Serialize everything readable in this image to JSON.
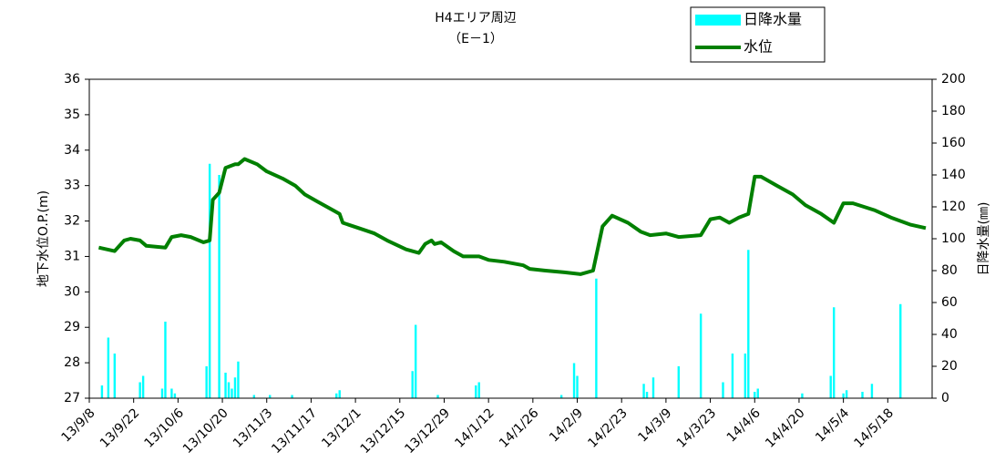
{
  "chart_data": {
    "type": "bar-line",
    "title": "H4エリア周辺",
    "subtitle": "（E－1）",
    "y_label": "地下水位O.P.(m)",
    "y2_label": "日降水量(㎜)",
    "xlim": [
      "2013-09-08",
      "2014-06-01"
    ],
    "xticks": [
      {
        "value": "2013-09-08",
        "label": "13/9/8"
      },
      {
        "value": "2013-09-22",
        "label": "13/9/22"
      },
      {
        "value": "2013-10-06",
        "label": "13/10/6"
      },
      {
        "value": "2013-10-20",
        "label": "13/10/20"
      },
      {
        "value": "2013-11-03",
        "label": "13/11/3"
      },
      {
        "value": "2013-11-17",
        "label": "13/11/17"
      },
      {
        "value": "2013-12-01",
        "label": "13/12/1"
      },
      {
        "value": "2013-12-15",
        "label": "13/12/15"
      },
      {
        "value": "2013-12-29",
        "label": "13/12/29"
      },
      {
        "value": "2014-01-12",
        "label": "14/1/12"
      },
      {
        "value": "2014-01-26",
        "label": "14/1/26"
      },
      {
        "value": "2014-02-09",
        "label": "14/2/9"
      },
      {
        "value": "2014-02-23",
        "label": "14/2/23"
      },
      {
        "value": "2014-03-09",
        "label": "14/3/9"
      },
      {
        "value": "2014-03-23",
        "label": "14/3/23"
      },
      {
        "value": "2014-04-06",
        "label": "14/4/6"
      },
      {
        "value": "2014-04-20",
        "label": "14/4/20"
      },
      {
        "value": "2014-05-04",
        "label": "14/5/4"
      },
      {
        "value": "2014-05-18",
        "label": "14/5/18"
      }
    ],
    "ylim": [
      27,
      36
    ],
    "yticks": [
      27,
      28,
      29,
      30,
      31,
      32,
      33,
      34,
      35,
      36
    ],
    "y2lim": [
      0,
      200
    ],
    "y2ticks": [
      0,
      20,
      40,
      60,
      80,
      100,
      120,
      140,
      160,
      180,
      200
    ],
    "series": [
      {
        "name": "日降水量",
        "type": "bar",
        "axis": "y2",
        "color": "#00ffff",
        "x": [
          "2013-09-12",
          "2013-09-14",
          "2013-09-16",
          "2013-09-24",
          "2013-09-25",
          "2013-10-01",
          "2013-10-02",
          "2013-10-04",
          "2013-10-05",
          "2013-10-15",
          "2013-10-16",
          "2013-10-19",
          "2013-10-21",
          "2013-10-22",
          "2013-10-23",
          "2013-10-24",
          "2013-10-25",
          "2013-10-30",
          "2013-11-04",
          "2013-11-11",
          "2013-11-25",
          "2013-11-26",
          "2013-12-19",
          "2013-12-20",
          "2013-12-27",
          "2014-01-08",
          "2014-01-09",
          "2014-02-04",
          "2014-02-08",
          "2014-02-09",
          "2014-02-15",
          "2014-03-02",
          "2014-03-03",
          "2014-03-05",
          "2014-03-13",
          "2014-03-20",
          "2014-03-27",
          "2014-03-30",
          "2014-04-03",
          "2014-04-04",
          "2014-04-06",
          "2014-04-07",
          "2014-04-21",
          "2014-04-30",
          "2014-05-01",
          "2014-05-04",
          "2014-05-05",
          "2014-05-10",
          "2014-05-13",
          "2014-05-22"
        ],
        "values": [
          8,
          38,
          28,
          10,
          14,
          6,
          48,
          6,
          3,
          20,
          147,
          140,
          16,
          10,
          6,
          13,
          23,
          2,
          2,
          2,
          3,
          5,
          17,
          46,
          2,
          8,
          10,
          2,
          22,
          14,
          75,
          9,
          4,
          13,
          20,
          53,
          10,
          28,
          28,
          93,
          4,
          6,
          3,
          14,
          57,
          3,
          5,
          4,
          9,
          59
        ]
      },
      {
        "name": "水位",
        "type": "line",
        "axis": "y",
        "color": "#008000",
        "x": [
          "2013-09-11",
          "2013-09-16",
          "2013-09-19",
          "2013-09-21",
          "2013-09-24",
          "2013-09-26",
          "2013-10-02",
          "2013-10-04",
          "2013-10-07",
          "2013-10-10",
          "2013-10-14",
          "2013-10-16",
          "2013-10-17",
          "2013-10-19",
          "2013-10-21",
          "2013-10-24",
          "2013-10-25",
          "2013-10-27",
          "2013-10-31",
          "2013-11-03",
          "2013-11-08",
          "2013-11-12",
          "2013-11-15",
          "2013-11-19",
          "2013-11-24",
          "2013-11-26",
          "2013-11-27",
          "2013-12-02",
          "2013-12-07",
          "2013-12-11",
          "2013-12-17",
          "2013-12-21",
          "2013-12-23",
          "2013-12-25",
          "2013-12-26",
          "2013-12-28",
          "2014-01-01",
          "2014-01-04",
          "2014-01-09",
          "2014-01-12",
          "2014-01-17",
          "2014-01-23",
          "2014-01-25",
          "2014-01-30",
          "2014-02-05",
          "2014-02-10",
          "2014-02-14",
          "2014-02-17",
          "2014-02-20",
          "2014-02-25",
          "2014-03-01",
          "2014-03-04",
          "2014-03-09",
          "2014-03-13",
          "2014-03-20",
          "2014-03-23",
          "2014-03-26",
          "2014-03-29",
          "2014-04-01",
          "2014-04-04",
          "2014-04-06",
          "2014-04-08",
          "2014-04-13",
          "2014-04-18",
          "2014-04-22",
          "2014-04-27",
          "2014-05-01",
          "2014-05-04",
          "2014-05-07",
          "2014-05-14",
          "2014-05-19",
          "2014-05-25",
          "2014-05-30"
        ],
        "values": [
          31.25,
          31.15,
          31.45,
          31.5,
          31.45,
          31.3,
          31.25,
          31.55,
          31.6,
          31.55,
          31.4,
          31.45,
          32.6,
          32.8,
          33.5,
          33.6,
          33.6,
          33.75,
          33.6,
          33.4,
          33.2,
          33.0,
          32.75,
          32.55,
          32.3,
          32.2,
          31.95,
          31.8,
          31.65,
          31.45,
          31.2,
          31.1,
          31.35,
          31.45,
          31.35,
          31.4,
          31.15,
          31.0,
          31.0,
          30.9,
          30.85,
          30.75,
          30.65,
          30.6,
          30.55,
          30.5,
          30.6,
          31.85,
          32.15,
          31.95,
          31.7,
          31.6,
          31.65,
          31.55,
          31.6,
          32.05,
          32.1,
          31.95,
          32.1,
          32.2,
          33.25,
          33.25,
          33.0,
          32.75,
          32.45,
          32.2,
          31.95,
          32.5,
          32.5,
          32.3,
          32.1,
          31.9,
          31.8
        ]
      }
    ]
  }
}
